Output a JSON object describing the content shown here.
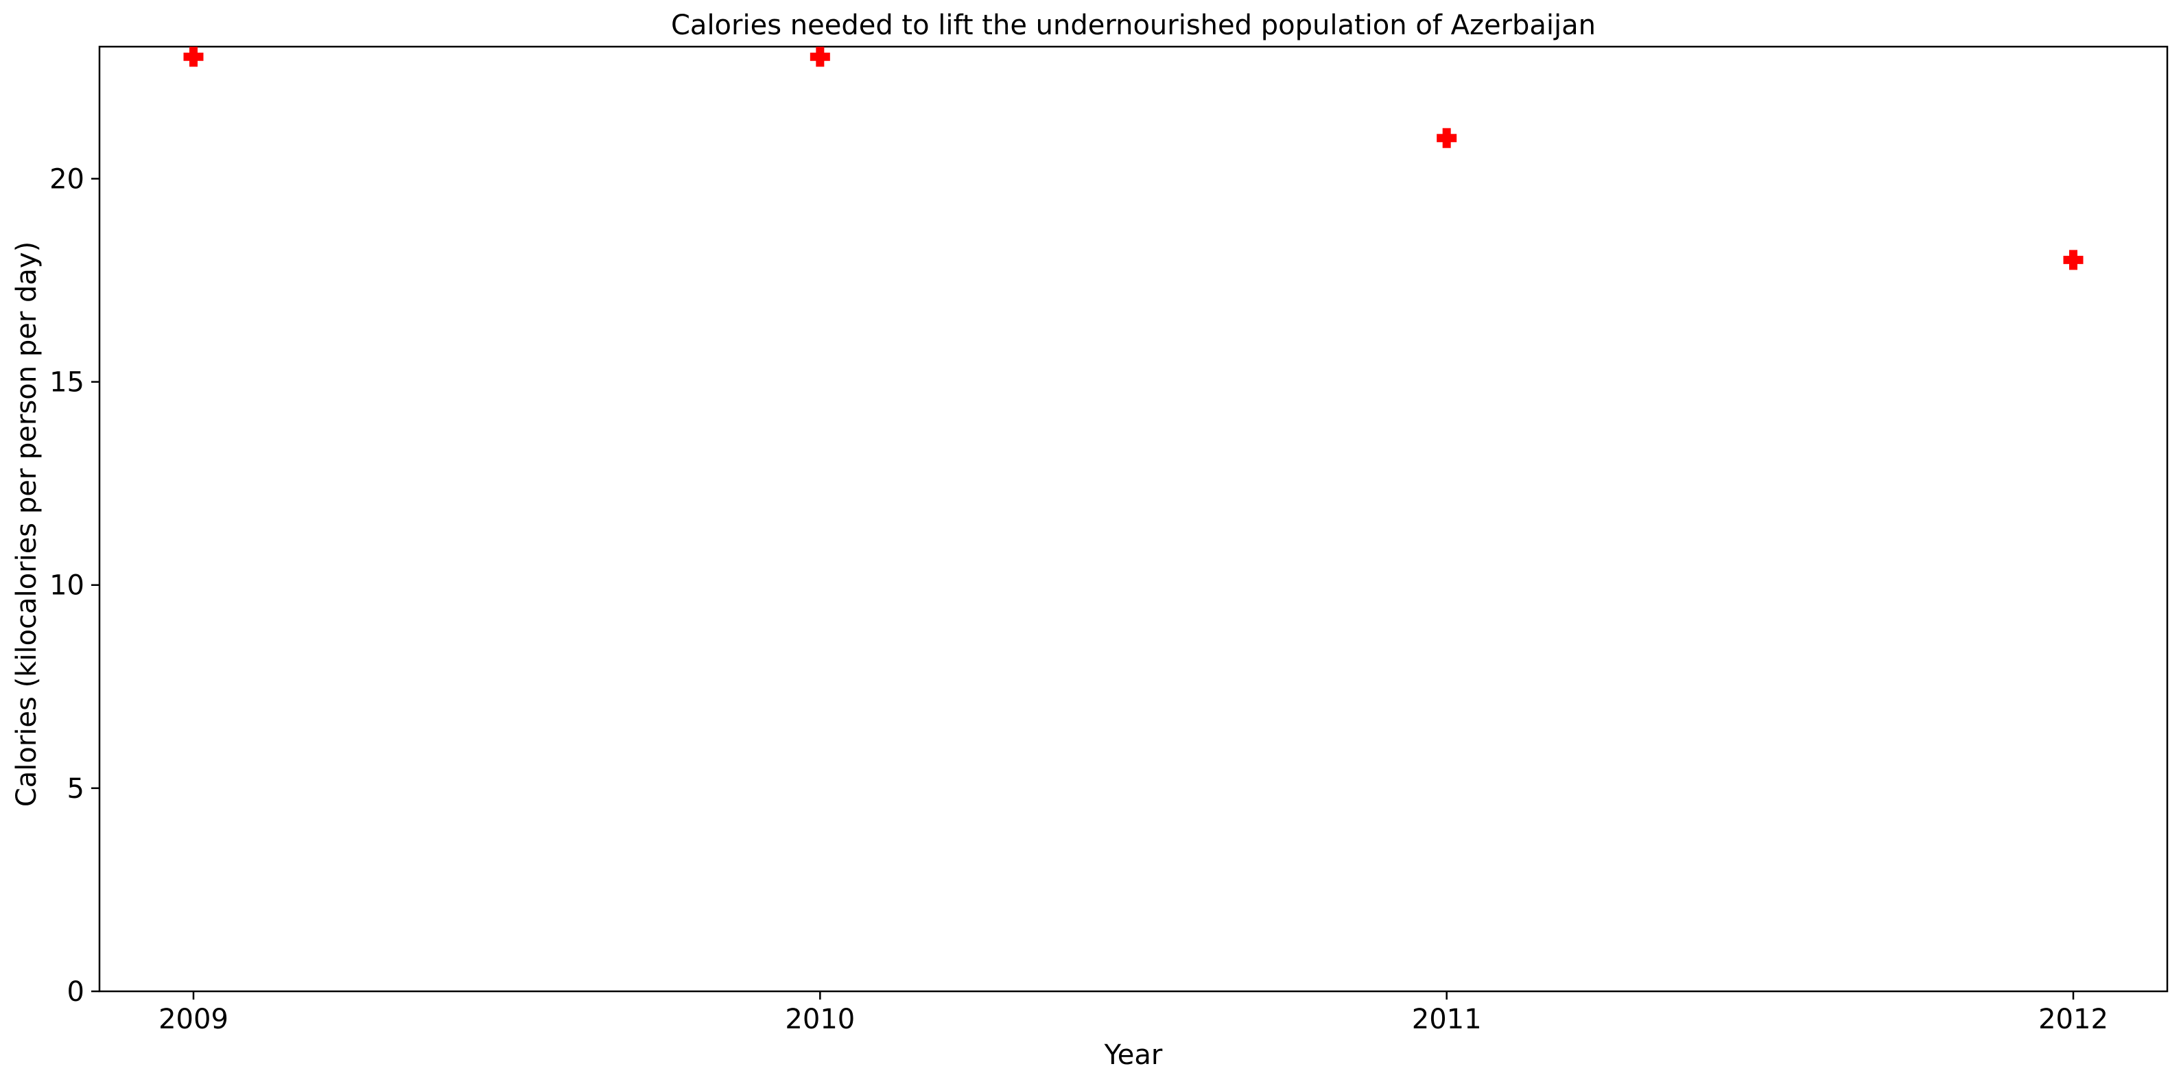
{
  "chart_data": {
    "type": "scatter",
    "title": "Calories needed to lift the undernourished population of Azerbaijan",
    "xlabel": "Year",
    "ylabel": "Calories (kilocalories per person per day)",
    "x": [
      2009,
      2010,
      2011,
      2012
    ],
    "x_tick_labels": [
      "2009",
      "2010",
      "2011",
      "2012"
    ],
    "y_ticks": [
      0,
      5,
      10,
      15,
      20
    ],
    "y_tick_labels": [
      "0",
      "5",
      "10",
      "15",
      "20"
    ],
    "ylim": [
      0,
      23.25
    ],
    "xlim": [
      2008.85,
      2012.15
    ],
    "series": [
      {
        "values": [
          23,
          23,
          21,
          18
        ],
        "marker": "plus-filled",
        "color": "#ff0000"
      }
    ],
    "grid": false,
    "legend": "none"
  }
}
